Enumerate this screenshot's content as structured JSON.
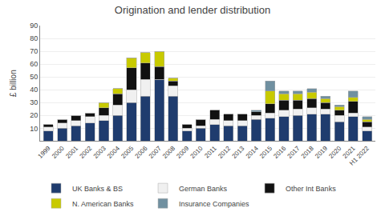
{
  "chart_data": {
    "type": "bar",
    "stacked": true,
    "title": "Origination and lender distribution",
    "ylabel": "£ billion",
    "categories": [
      "1999",
      "2000",
      "2001",
      "2002",
      "2003",
      "2004",
      "2005",
      "2006",
      "2007",
      "2008",
      "2009",
      "2010",
      "2011",
      "2012",
      "2013",
      "2014",
      "2015",
      "2016",
      "2017",
      "2018",
      "2019",
      "2020",
      "2021",
      "H1 2022"
    ],
    "series": [
      {
        "name": "UK Banks & BS",
        "color": "#1f3c6e",
        "values": [
          8,
          10,
          12,
          14,
          16,
          20,
          30,
          35,
          48,
          35,
          8,
          10,
          13,
          12,
          12,
          17,
          18,
          19,
          20,
          21,
          21,
          15,
          19,
          8
        ]
      },
      {
        "name": "German Banks",
        "color": "#f0f0f0",
        "values": [
          3,
          4,
          4,
          5,
          4,
          8,
          10,
          13,
          0,
          8,
          2,
          2,
          4,
          4,
          4,
          3,
          4,
          5,
          5,
          5,
          4,
          5,
          3,
          3
        ]
      },
      {
        "name": "Other Int Banks",
        "color": "#111111",
        "values": [
          2,
          3,
          4,
          3,
          6,
          9,
          17,
          13,
          10,
          4,
          3,
          5,
          7,
          5,
          5,
          3,
          7,
          8,
          7,
          7,
          5,
          4,
          9,
          4
        ]
      },
      {
        "name": "N. American Banks",
        "color": "#c8ca00",
        "values": [
          0,
          0,
          0,
          0,
          4,
          4,
          8,
          8,
          12,
          2,
          0,
          0,
          0,
          0,
          0,
          0,
          10,
          5,
          5,
          5,
          3,
          3,
          3,
          2
        ]
      },
      {
        "name": "Insurance Companies",
        "color": "#7090a0",
        "values": [
          0,
          0,
          0,
          0,
          0,
          0,
          0,
          0,
          0,
          0,
          0,
          0,
          0,
          0,
          0,
          1,
          8,
          2,
          2,
          3,
          2,
          1,
          5,
          2
        ]
      }
    ],
    "ylim": [
      0,
      90
    ],
    "yticks": [
      10,
      20,
      30,
      40,
      50,
      60,
      70,
      80,
      90
    ],
    "grid": true,
    "legend": "bottom"
  }
}
